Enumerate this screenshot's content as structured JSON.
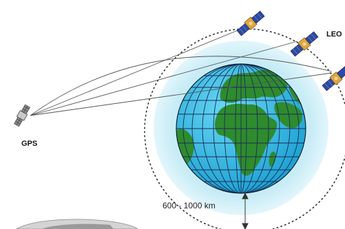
{
  "labels": {
    "gps": "GPS",
    "leo": "LEO",
    "altitude": "600 - 1000 km"
  },
  "colors": {
    "ocean": "#3cc0e6",
    "land": "#2e8b2e",
    "atmosphere": "#cdeef7",
    "gridlines": "#1b2b55",
    "orbit": "#333333",
    "satellite_body": "#e0a640",
    "solar_panel": "#2b4aa3",
    "signal_lines": "#555555"
  },
  "icons": {
    "gps_satellite": "gps-satellite-icon",
    "leo_satellite": "leo-satellite-icon",
    "earth": "earth-globe-icon"
  }
}
